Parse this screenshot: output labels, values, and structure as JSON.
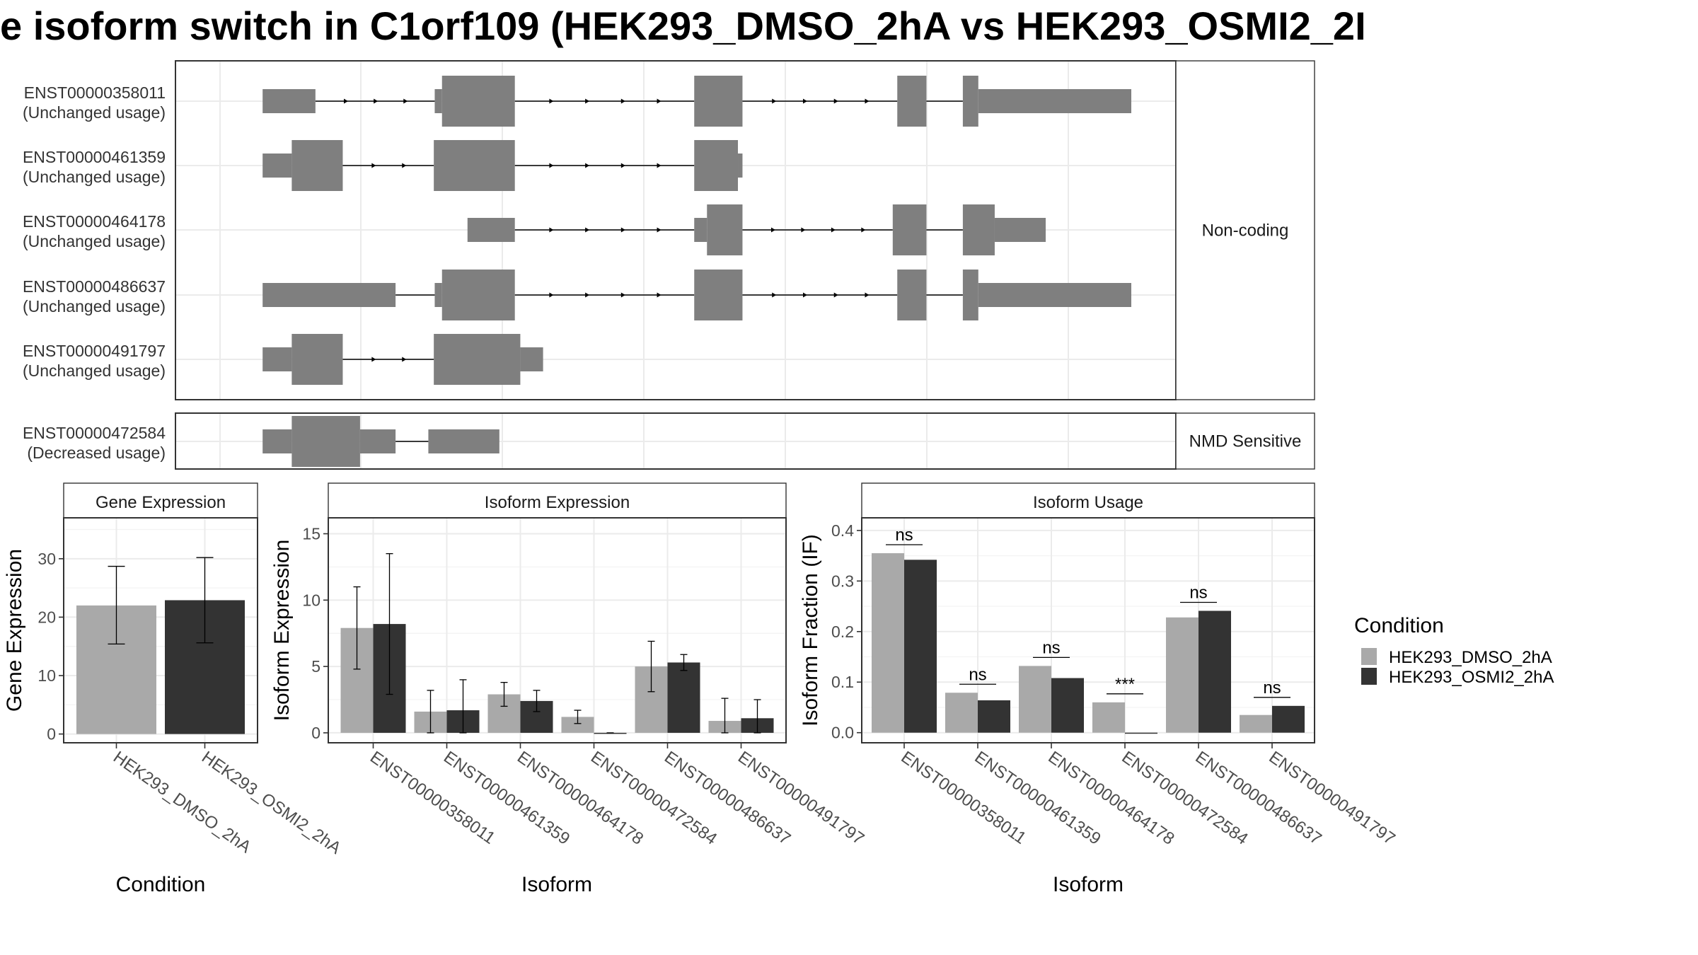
{
  "title": "e isoform switch in C1orf109 (HEK293_DMSO_2hA vs HEK293_OSMI2_2I",
  "colors": {
    "dmso": "#a9a9a9",
    "osmi": "#333333",
    "transcript": "#7f7f7f",
    "grid": "#ebebeb",
    "strip": "#ffffff"
  },
  "structure": {
    "genome_range": [
      0,
      100
    ],
    "panels": [
      {
        "strip": "Non-coding",
        "transcripts": [
          {
            "id": "ENST00000358011",
            "label": "(Unchanged usage)",
            "segments": [
              [
                4.6,
                10.4,
                "s"
              ],
              [
                23.5,
                24.3,
                "s"
              ],
              [
                24.3,
                32.3,
                "l"
              ],
              [
                52.0,
                57.3,
                "l"
              ],
              [
                74.3,
                77.5,
                "l"
              ],
              [
                81.5,
                83.2,
                "l"
              ],
              [
                83.2,
                100,
                "s"
              ]
            ],
            "introns": [
              [
                10.4,
                23.5
              ],
              [
                32.3,
                52.0
              ],
              [
                57.3,
                74.3
              ],
              [
                77.5,
                81.5
              ]
            ]
          },
          {
            "id": "ENST00000461359",
            "label": "(Unchanged usage)",
            "segments": [
              [
                4.6,
                7.8,
                "s"
              ],
              [
                7.8,
                13.4,
                "l"
              ],
              [
                23.4,
                32.3,
                "l"
              ],
              [
                52.0,
                56.8,
                "l"
              ],
              [
                56.8,
                57.3,
                "s"
              ]
            ],
            "introns": [
              [
                13.4,
                23.4
              ],
              [
                32.3,
                52.0
              ]
            ]
          },
          {
            "id": "ENST00000464178",
            "label": "(Unchanged usage)",
            "segments": [
              [
                27.1,
                32.3,
                "s"
              ],
              [
                52.0,
                53.4,
                "s"
              ],
              [
                53.4,
                57.3,
                "l"
              ],
              [
                73.8,
                77.5,
                "l"
              ],
              [
                81.5,
                85.0,
                "l"
              ],
              [
                85.0,
                90.6,
                "s"
              ]
            ],
            "introns": [
              [
                32.3,
                52.0
              ],
              [
                57.3,
                73.8
              ],
              [
                77.5,
                81.5
              ]
            ]
          },
          {
            "id": "ENST00000486637",
            "label": "(Unchanged usage)",
            "segments": [
              [
                4.6,
                19.2,
                "s"
              ],
              [
                23.5,
                24.3,
                "s"
              ],
              [
                24.3,
                32.3,
                "l"
              ],
              [
                52.0,
                57.3,
                "l"
              ],
              [
                74.3,
                77.5,
                "l"
              ],
              [
                81.5,
                83.2,
                "l"
              ],
              [
                83.2,
                100,
                "s"
              ]
            ],
            "introns": [
              [
                19.2,
                23.5
              ],
              [
                32.3,
                52.0
              ],
              [
                57.3,
                74.3
              ],
              [
                77.5,
                81.5
              ]
            ]
          },
          {
            "id": "ENST00000491797",
            "label": "(Unchanged usage)",
            "segments": [
              [
                4.6,
                7.8,
                "s"
              ],
              [
                7.8,
                13.4,
                "l"
              ],
              [
                23.4,
                32.9,
                "l"
              ],
              [
                32.9,
                35.4,
                "s"
              ]
            ],
            "introns": [
              [
                13.4,
                23.4
              ]
            ]
          }
        ]
      },
      {
        "strip": "NMD Sensitive",
        "transcripts": [
          {
            "id": "ENST00000472584",
            "label": "(Decreased usage)",
            "segments": [
              [
                4.6,
                7.8,
                "s"
              ],
              [
                7.8,
                15.3,
                "l"
              ],
              [
                15.3,
                19.2,
                "s"
              ],
              [
                22.8,
                30.6,
                "s"
              ]
            ],
            "introns": [
              [
                19.2,
                22.8
              ]
            ]
          }
        ]
      }
    ]
  },
  "chart_data": [
    {
      "type": "bar",
      "title": "Gene Expression",
      "xlabel": "Condition",
      "ylabel": "Gene Expression",
      "ylim": [
        -1.5,
        37
      ],
      "yticks": [
        0,
        10,
        20,
        30
      ],
      "categories": [
        "HEK293_DMSO_2hA",
        "HEK293_OSMI2_2hA"
      ],
      "values": [
        22.0,
        22.9
      ],
      "err_low": [
        15.4,
        15.6
      ],
      "err_high": [
        28.7,
        30.2
      ]
    },
    {
      "type": "bar",
      "title": "Isoform Expression",
      "xlabel": "Isoform",
      "ylabel": "Isoform Expression",
      "ylim": [
        -0.75,
        16.2
      ],
      "yticks": [
        0,
        5,
        10,
        15
      ],
      "categories": [
        "ENST00000358011",
        "ENST00000461359",
        "ENST00000464178",
        "ENST00000472584",
        "ENST00000486637",
        "ENST00000491797"
      ],
      "series": [
        {
          "name": "HEK293_DMSO_2hA",
          "values": [
            7.9,
            1.6,
            2.9,
            1.2,
            5.0,
            0.9
          ],
          "err_low": [
            4.8,
            0.0,
            2.0,
            0.7,
            3.1,
            0.0
          ],
          "err_high": [
            11.0,
            3.2,
            3.8,
            1.7,
            6.9,
            2.6
          ]
        },
        {
          "name": "HEK293_OSMI2_2hA",
          "values": [
            8.2,
            1.7,
            2.4,
            0.0,
            5.3,
            1.1
          ],
          "err_low": [
            2.9,
            0.0,
            1.6,
            0.0,
            4.7,
            0.0
          ],
          "err_high": [
            13.5,
            4.0,
            3.2,
            0.0,
            5.9,
            2.5
          ]
        }
      ]
    },
    {
      "type": "bar",
      "title": "Isoform Usage",
      "xlabel": "Isoform",
      "ylabel": "Isoform Fraction (IF)",
      "ylim": [
        -0.02,
        0.425
      ],
      "yticks": [
        0.0,
        0.1,
        0.2,
        0.3,
        0.4
      ],
      "categories": [
        "ENST00000358011",
        "ENST00000461359",
        "ENST00000464178",
        "ENST00000472584",
        "ENST00000486637",
        "ENST00000491797"
      ],
      "series": [
        {
          "name": "HEK293_DMSO_2hA",
          "values": [
            0.355,
            0.079,
            0.132,
            0.06,
            0.228,
            0.035
          ]
        },
        {
          "name": "HEK293_OSMI2_2hA",
          "values": [
            0.342,
            0.064,
            0.108,
            0.0,
            0.241,
            0.053
          ]
        }
      ],
      "annotations": [
        "ns",
        "ns",
        "ns",
        "***",
        "ns",
        "ns"
      ]
    }
  ],
  "legend": {
    "title": "Condition",
    "entries": [
      "HEK293_DMSO_2hA",
      "HEK293_OSMI2_2hA"
    ]
  }
}
